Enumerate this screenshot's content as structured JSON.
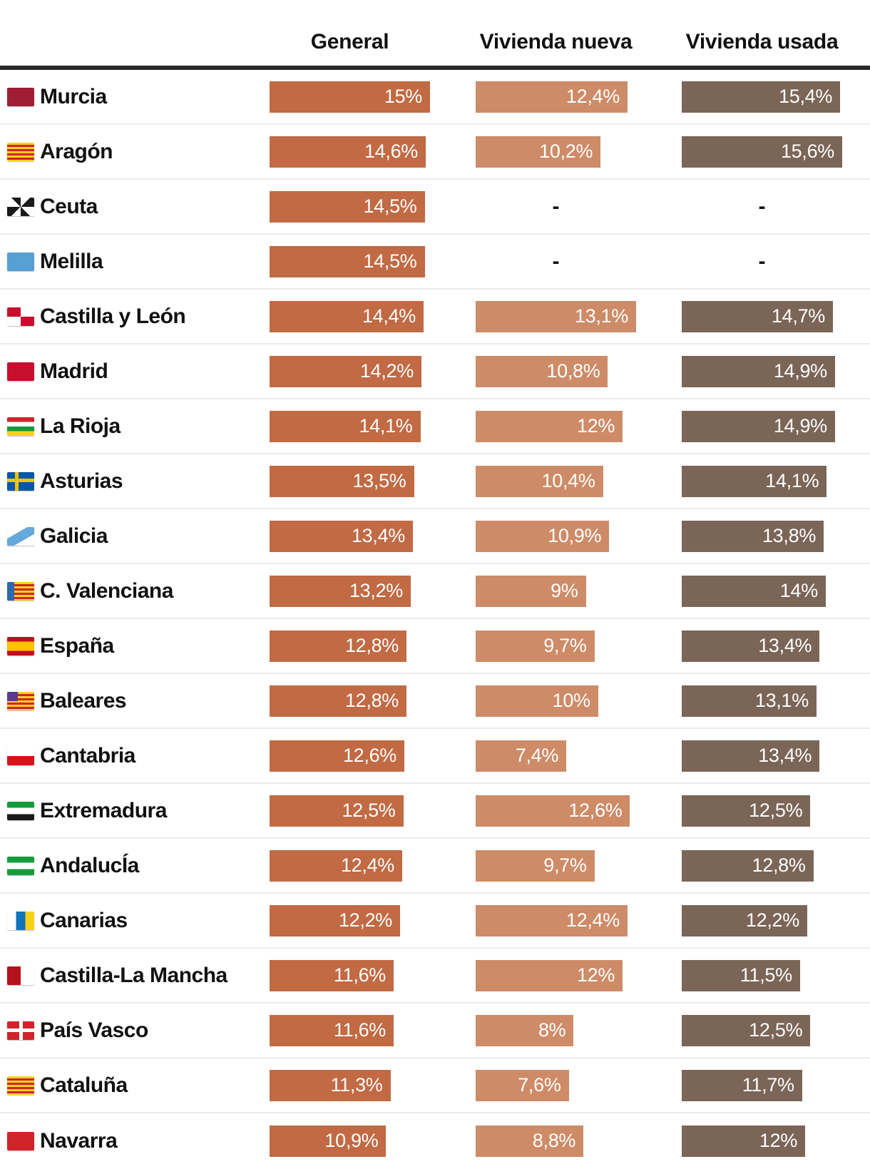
{
  "chart_data": {
    "type": "bar",
    "orientation": "horizontal",
    "title": "",
    "legend_position": "top",
    "grid": false,
    "null_display": "-",
    "series": [
      {
        "key": "general",
        "name": "General",
        "color": "#C16A43",
        "max": 15
      },
      {
        "key": "nueva",
        "name": "Vivienda nueva",
        "color": "#CE8B67",
        "max": 13.1
      },
      {
        "key": "usada",
        "name": "Vivienda usada",
        "color": "#7B6557",
        "max": 15.6
      }
    ],
    "categories": [
      "Murcia",
      "Aragón",
      "Ceuta",
      "Melilla",
      "Castilla y León",
      "Madrid",
      "La Rioja",
      "Asturias",
      "Galicia",
      "C. Valenciana",
      "España",
      "Baleares",
      "Cantabria",
      "Extremadura",
      "AndalucÍa",
      "Canarias",
      "Castilla-La Mancha",
      "País Vasco",
      "Cataluña",
      "Navarra"
    ],
    "values": [
      [
        15,
        12.4,
        15.4
      ],
      [
        14.6,
        10.2,
        15.6
      ],
      [
        14.5,
        null,
        null
      ],
      [
        14.5,
        null,
        null
      ],
      [
        14.4,
        13.1,
        14.7
      ],
      [
        14.2,
        10.8,
        14.9
      ],
      [
        14.1,
        12,
        14.9
      ],
      [
        13.5,
        10.4,
        14.1
      ],
      [
        13.4,
        10.9,
        13.8
      ],
      [
        13.2,
        9,
        14
      ],
      [
        12.8,
        9.7,
        13.4
      ],
      [
        12.8,
        10,
        13.1
      ],
      [
        12.6,
        7.4,
        13.4
      ],
      [
        12.5,
        12.6,
        12.5
      ],
      [
        12.4,
        9.7,
        12.8
      ],
      [
        12.2,
        12.4,
        12.2
      ],
      [
        11.6,
        12,
        11.5
      ],
      [
        11.6,
        8,
        12.5
      ],
      [
        11.3,
        7.6,
        11.7
      ],
      [
        10.9,
        8.8,
        12
      ]
    ],
    "labels": [
      [
        "15%",
        "12,4%",
        "15,4%"
      ],
      [
        "14,6%",
        "10,2%",
        "15,6%"
      ],
      [
        "14,5%",
        "-",
        "-"
      ],
      [
        "14,5%",
        "-",
        "-"
      ],
      [
        "14,4%",
        "13,1%",
        "14,7%"
      ],
      [
        "14,2%",
        "10,8%",
        "14,9%"
      ],
      [
        "14,1%",
        "12%",
        "14,9%"
      ],
      [
        "13,5%",
        "10,4%",
        "14,1%"
      ],
      [
        "13,4%",
        "10,9%",
        "13,8%"
      ],
      [
        "13,2%",
        "9%",
        "14%"
      ],
      [
        "12,8%",
        "9,7%",
        "13,4%"
      ],
      [
        "12,8%",
        "10%",
        "13,1%"
      ],
      [
        "12,6%",
        "7,4%",
        "13,4%"
      ],
      [
        "12,5%",
        "12,6%",
        "12,5%"
      ],
      [
        "12,4%",
        "9,7%",
        "12,8%"
      ],
      [
        "12,2%",
        "12,4%",
        "12,2%"
      ],
      [
        "11,6%",
        "12%",
        "11,5%"
      ],
      [
        "11,6%",
        "8%",
        "12,5%"
      ],
      [
        "11,3%",
        "7,6%",
        "11,7%"
      ],
      [
        "10,9%",
        "8,8%",
        "12%"
      ]
    ]
  },
  "flags": [
    {
      "name": "murcia",
      "bg": "#A11D33"
    },
    {
      "name": "aragon",
      "bg": "repeating-linear-gradient(180deg,#F8D21A 0 3px,#D0232A 3px 6px)"
    },
    {
      "name": "ceuta",
      "bg": "conic-gradient(#fff 0 45deg,#1a1a1a 45deg 90deg,#fff 90deg 135deg,#1a1a1a 135deg 180deg,#fff 180deg 225deg,#1a1a1a 225deg 270deg,#fff 270deg 315deg,#1a1a1a 315deg 360deg)"
    },
    {
      "name": "melilla",
      "bg": "#56A0D3"
    },
    {
      "name": "castilla-y-leon",
      "bg": "conic-gradient(#fff 0 90deg,#C8102E 90deg 180deg,#fff 180deg 270deg,#C8102E 270deg 360deg)"
    },
    {
      "name": "madrid",
      "bg": "#C8102E"
    },
    {
      "name": "la-rioja",
      "bg": "linear-gradient(180deg,#D0232A 0 25%,#fff 25% 50%,#149839 50% 75%,#F8D21A 75% 100%)"
    },
    {
      "name": "asturias",
      "bg": "linear-gradient(#F3C300,#F3C300) 11px 0/5px 100% no-repeat,linear-gradient(#F3C300,#F3C300) 0 9px/100% 5px no-repeat,#0058A8"
    },
    {
      "name": "galicia",
      "bg": "linear-gradient(150deg,#fff 0 34%,#65A8DC 34% 66%,#fff 66% 100%)"
    },
    {
      "name": "c-valenciana",
      "bg": "linear-gradient(90deg,#2A6BB0 0 26%,rgba(0,0,0,0) 26%),repeating-linear-gradient(180deg,#F8D21A 0 3px,#D0232A 3px 6px)"
    },
    {
      "name": "espana",
      "bg": "linear-gradient(180deg,#C60B1E 0 25%,#FFC400 25% 75%,#C60B1E 75% 100%)"
    },
    {
      "name": "baleares",
      "bg": "linear-gradient(#5C3A8E,#5C3A8E) 0 0/40% 50% no-repeat,repeating-linear-gradient(180deg,#F8D21A 0 3px,#D0232A 3px 6px)"
    },
    {
      "name": "cantabria",
      "bg": "linear-gradient(180deg,#fff 0 50%,#DA121A 50% 100%)"
    },
    {
      "name": "extremadura",
      "bg": "linear-gradient(180deg,#169B3B 0 33.4%,#fff 33.4% 66.7%,#1a1a1a 66.7% 100%)"
    },
    {
      "name": "andalucia",
      "bg": "linear-gradient(180deg,#169B3B 0 33.4%,#fff 33.4% 66.7%,#169B3B 66.7% 100%)"
    },
    {
      "name": "canarias",
      "bg": "linear-gradient(90deg,#fff 0 33.4%,#1073BC 33.4% 66.7%,#F7D117 66.7% 100%)"
    },
    {
      "name": "castilla-la-mancha",
      "bg": "linear-gradient(90deg,#B5121B 0 50%,#fff 50% 100%)"
    },
    {
      "name": "pais-vasco",
      "bg": "linear-gradient(#fff,#fff) 50% 0/5px 100% no-repeat,linear-gradient(#fff,#fff) 0 50%/100% 5px no-repeat,#D0232A"
    },
    {
      "name": "cataluna",
      "bg": "repeating-linear-gradient(180deg,#F8D21A 0 3px,#D0232A 3px 6px)"
    },
    {
      "name": "navarra",
      "bg": "#D0232A"
    }
  ]
}
